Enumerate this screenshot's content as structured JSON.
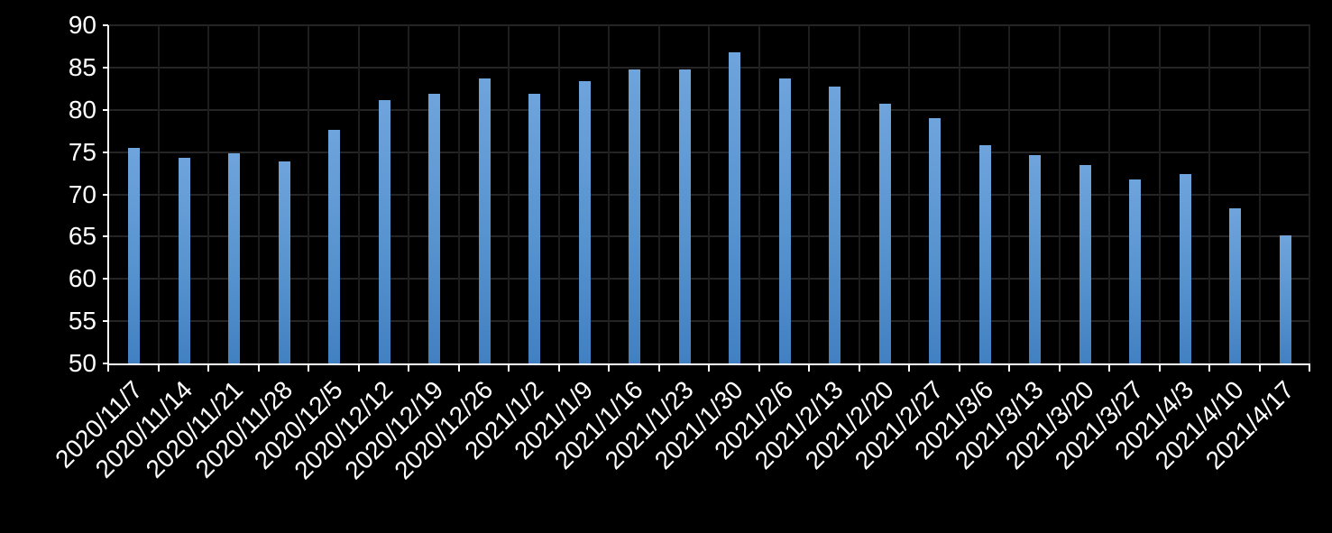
{
  "chart_data": {
    "type": "bar",
    "title": "",
    "xlabel": "",
    "ylabel": "",
    "categories": [
      "2020/11/7",
      "2020/11/14",
      "2020/11/21",
      "2020/11/28",
      "2020/12/5",
      "2020/12/12",
      "2020/12/19",
      "2020/12/26",
      "2021/1/2",
      "2021/1/9",
      "2021/1/16",
      "2021/1/23",
      "2021/1/30",
      "2021/2/6",
      "2021/2/13",
      "2021/2/20",
      "2021/2/27",
      "2021/3/6",
      "2021/3/13",
      "2021/3/20",
      "2021/3/27",
      "2021/4/3",
      "2021/4/10",
      "2021/4/17"
    ],
    "values": [
      75.5,
      74.3,
      74.9,
      73.9,
      77.6,
      81.2,
      81.9,
      83.7,
      81.9,
      83.4,
      84.8,
      84.8,
      86.8,
      83.7,
      82.8,
      80.7,
      79.0,
      75.8,
      74.6,
      73.5,
      71.8,
      72.4,
      68.3,
      65.1
    ],
    "ylim": [
      50,
      90
    ],
    "ytick_step": 5,
    "y_tick_labels": [
      "90",
      "85",
      "80",
      "75",
      "70",
      "65",
      "60",
      "55",
      "50"
    ],
    "grid": true,
    "legend_position": "none",
    "colors": {
      "background": "#000000",
      "bar_gradient_top": "#6FA4DC",
      "bar_gradient_bottom": "#4180C2",
      "horizontal_gridline": "#242424",
      "vertical_gridline": "#1e1e1e",
      "axis_line": "#ffffff",
      "tick_label": "#ffffff"
    }
  }
}
